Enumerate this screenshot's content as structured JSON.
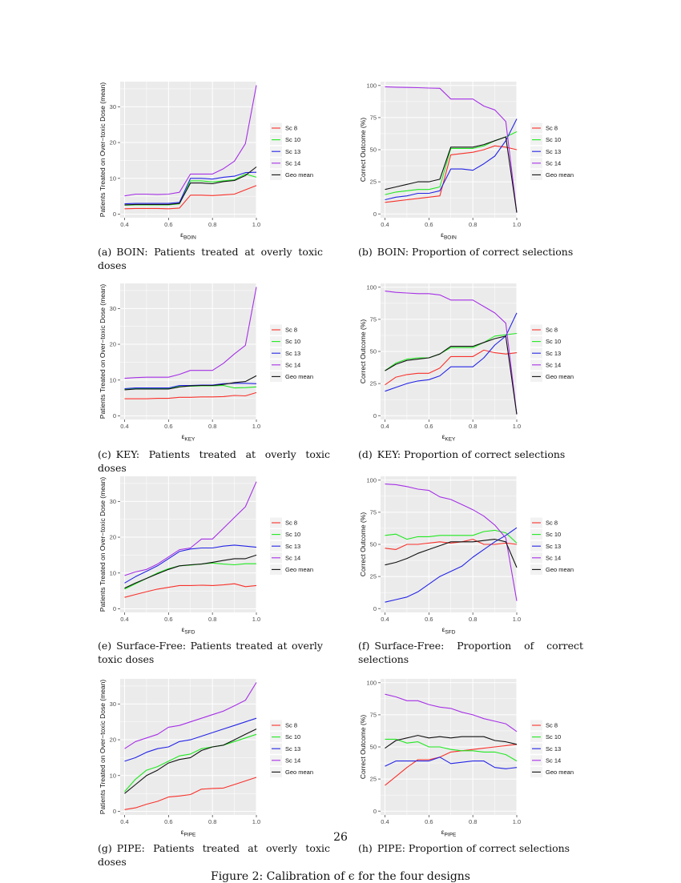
{
  "page_number": "26",
  "figure_caption": "Figure 2: Calibration of ϵ for the four designs",
  "legend_labels": [
    "Sc 8",
    "Sc 10",
    "Sc 13",
    "Sc 14",
    "Geo mean"
  ],
  "colors": {
    "Sc 8": "#f8312b",
    "Sc 10": "#21e821",
    "Sc 13": "#2424e6",
    "Sc 14": "#a630e6",
    "Geo mean": "#111111",
    "panel_bg": "#ebebeb",
    "grid": "#ffffff"
  },
  "captions": [
    {
      "label": "(a)",
      "text": "BOIN: Patients treated at overly toxic doses"
    },
    {
      "label": "(b)",
      "text": "BOIN: Proportion of correct selections"
    },
    {
      "label": "(c)",
      "text": "KEY: Patients treated at overly toxic doses"
    },
    {
      "label": "(d)",
      "text": "KEY: Proportion of correct selections"
    },
    {
      "label": "(e)",
      "text": "Surface-Free: Patients treated at overly toxic doses"
    },
    {
      "label": "(f)",
      "text": "Surface-Free: Proportion of correct selections"
    },
    {
      "label": "(g)",
      "text": "PIPE: Patients treated at overly toxic doses"
    },
    {
      "label": "(h)",
      "text": "PIPE: Proportion of correct selections"
    }
  ],
  "chart_data": [
    {
      "type": "line",
      "ylabel": "Patients Treated on Over−toxic Dose (mean)",
      "xlabel_base": "ε",
      "xlabel_sub": "BOIN",
      "xlim": [
        0.38,
        1.0
      ],
      "ylim": [
        -1,
        37
      ],
      "xticks": [
        0.4,
        0.6,
        0.8,
        1.0
      ],
      "xtick_labels": [
        "0.4",
        "0.6",
        "0.8",
        "1.0"
      ],
      "yticks": [
        0,
        10,
        20,
        30
      ],
      "ytick_labels": [
        "0",
        "10",
        "20",
        "30"
      ],
      "x": [
        0.4,
        0.45,
        0.5,
        0.55,
        0.6,
        0.65,
        0.7,
        0.75,
        0.8,
        0.85,
        0.9,
        0.95,
        1.0
      ],
      "series": [
        {
          "name": "Sc 8",
          "values": [
            1.5,
            1.6,
            1.6,
            1.6,
            1.5,
            1.7,
            5.3,
            5.3,
            5.2,
            5.4,
            5.6,
            6.8,
            8.0
          ]
        },
        {
          "name": "Sc 10",
          "values": [
            2.5,
            2.6,
            2.6,
            2.6,
            2.6,
            2.9,
            9.3,
            9.3,
            9.0,
            9.3,
            9.6,
            11.2,
            10.3
          ]
        },
        {
          "name": "Sc 13",
          "values": [
            2.9,
            3.0,
            3.0,
            3.0,
            3.0,
            3.3,
            10.0,
            10.0,
            9.8,
            10.3,
            10.6,
            11.6,
            11.7
          ]
        },
        {
          "name": "Sc 14",
          "values": [
            5.1,
            5.6,
            5.6,
            5.5,
            5.6,
            6.1,
            11.2,
            11.2,
            11.2,
            12.7,
            14.8,
            19.7,
            36.0
          ]
        },
        {
          "name": "Geo mean",
          "values": [
            2.6,
            2.7,
            2.7,
            2.7,
            2.7,
            3.0,
            8.7,
            8.7,
            8.5,
            9.1,
            9.4,
            10.8,
            13.2
          ]
        }
      ]
    },
    {
      "type": "line",
      "ylabel": "Correct Outcome (%)",
      "xlabel_base": "ε",
      "xlabel_sub": "BOIN",
      "xlim": [
        0.38,
        1.0
      ],
      "ylim": [
        -3,
        103
      ],
      "xticks": [
        0.4,
        0.6,
        0.8,
        1.0
      ],
      "xtick_labels": [
        "0.4",
        "0.6",
        "0.8",
        "1.0"
      ],
      "yticks": [
        0,
        25,
        50,
        75,
        100
      ],
      "ytick_labels": [
        "0",
        "25",
        "50",
        "75",
        "100"
      ],
      "x": [
        0.4,
        0.45,
        0.5,
        0.55,
        0.6,
        0.65,
        0.7,
        0.75,
        0.8,
        0.85,
        0.9,
        0.95,
        1.0
      ],
      "series": [
        {
          "name": "Sc 8",
          "values": [
            9,
            10,
            11,
            12,
            13,
            14,
            46,
            47,
            48,
            50,
            53,
            52,
            50
          ]
        },
        {
          "name": "Sc 10",
          "values": [
            15,
            17,
            18,
            19,
            19,
            21,
            51,
            51,
            51,
            53,
            57,
            60,
            64
          ]
        },
        {
          "name": "Sc 13",
          "values": [
            11,
            13,
            14,
            16,
            16,
            18,
            35,
            35,
            34,
            39,
            45,
            57,
            74
          ]
        },
        {
          "name": "Sc 14",
          "values": [
            99,
            98.7,
            98.5,
            98.3,
            98,
            97.8,
            89.5,
            89.5,
            89.5,
            84,
            81,
            72,
            1
          ]
        },
        {
          "name": "Geo mean",
          "values": [
            19,
            21,
            23,
            25,
            25,
            27,
            52,
            52,
            52,
            54,
            57,
            60,
            1
          ]
        }
      ]
    },
    {
      "type": "line",
      "ylabel": "Patients Treated on Over−toxic Dose (mean)",
      "xlabel_base": "ε",
      "xlabel_sub": "KEY",
      "xlim": [
        0.38,
        1.0
      ],
      "ylim": [
        -1,
        37
      ],
      "xticks": [
        0.4,
        0.6,
        0.8,
        1.0
      ],
      "xtick_labels": [
        "0.4",
        "0.6",
        "0.8",
        "1.0"
      ],
      "yticks": [
        0,
        10,
        20,
        30
      ],
      "ytick_labels": [
        "0",
        "10",
        "20",
        "30"
      ],
      "x": [
        0.4,
        0.45,
        0.5,
        0.55,
        0.6,
        0.65,
        0.7,
        0.75,
        0.8,
        0.85,
        0.9,
        0.95,
        1.0
      ],
      "series": [
        {
          "name": "Sc 8",
          "values": [
            4.8,
            4.8,
            4.8,
            4.9,
            4.9,
            5.2,
            5.2,
            5.3,
            5.3,
            5.4,
            5.7,
            5.6,
            6.5
          ]
        },
        {
          "name": "Sc 10",
          "values": [
            7.5,
            7.6,
            7.7,
            7.7,
            7.7,
            8.2,
            8.3,
            8.4,
            8.4,
            8.5,
            7.8,
            7.9,
            8.1
          ]
        },
        {
          "name": "Sc 13",
          "values": [
            7.6,
            7.8,
            7.8,
            7.8,
            7.8,
            8.5,
            8.5,
            8.6,
            8.6,
            9.0,
            9.1,
            9.1,
            9.0
          ]
        },
        {
          "name": "Sc 14",
          "values": [
            10.5,
            10.7,
            10.8,
            10.8,
            10.8,
            11.6,
            12.7,
            12.7,
            12.7,
            14.7,
            17.3,
            19.7,
            36.0
          ]
        },
        {
          "name": "Geo mean",
          "values": [
            7.3,
            7.5,
            7.5,
            7.5,
            7.5,
            8.1,
            8.4,
            8.5,
            8.5,
            8.8,
            9.3,
            9.6,
            11.2
          ]
        }
      ]
    },
    {
      "type": "line",
      "ylabel": "Correct Outcome (%)",
      "xlabel_base": "ε",
      "xlabel_sub": "KEY",
      "xlim": [
        0.38,
        1.0
      ],
      "ylim": [
        -3,
        103
      ],
      "xticks": [
        0.4,
        0.6,
        0.8,
        1.0
      ],
      "xtick_labels": [
        "0.4",
        "0.6",
        "0.8",
        "1.0"
      ],
      "yticks": [
        0,
        25,
        50,
        75,
        100
      ],
      "ytick_labels": [
        "0",
        "25",
        "50",
        "75",
        "100"
      ],
      "x": [
        0.4,
        0.45,
        0.5,
        0.55,
        0.6,
        0.65,
        0.7,
        0.75,
        0.8,
        0.85,
        0.9,
        0.95,
        1.0
      ],
      "series": [
        {
          "name": "Sc 8",
          "values": [
            24,
            30,
            32,
            33,
            33,
            37,
            46,
            46,
            46,
            51,
            49,
            48,
            49
          ]
        },
        {
          "name": "Sc 10",
          "values": [
            35,
            41,
            44,
            45,
            45,
            48,
            53,
            53,
            53,
            57,
            62,
            63,
            64
          ]
        },
        {
          "name": "Sc 13",
          "values": [
            19,
            22,
            25,
            27,
            28,
            31,
            38,
            38,
            38,
            45,
            55,
            62,
            80
          ]
        },
        {
          "name": "Sc 14",
          "values": [
            97,
            96,
            95.5,
            95,
            95,
            94,
            90,
            90,
            90,
            85,
            80,
            72,
            1
          ]
        },
        {
          "name": "Geo mean",
          "values": [
            35,
            40,
            43,
            44,
            45,
            48,
            54,
            54,
            54,
            57,
            60,
            62,
            1
          ]
        }
      ]
    },
    {
      "type": "line",
      "ylabel": "Patients Treated on Over−toxic Dose (mean)",
      "xlabel_base": "ε",
      "xlabel_sub": "SFD",
      "xlim": [
        0.38,
        1.0
      ],
      "ylim": [
        -1,
        37
      ],
      "xticks": [
        0.4,
        0.6,
        0.8,
        1.0
      ],
      "xtick_labels": [
        "0.4",
        "0.6",
        "0.8",
        "1.0"
      ],
      "yticks": [
        0,
        10,
        20,
        30
      ],
      "ytick_labels": [
        "0",
        "10",
        "20",
        "30"
      ],
      "x": [
        0.4,
        0.45,
        0.5,
        0.55,
        0.6,
        0.65,
        0.7,
        0.75,
        0.8,
        0.85,
        0.9,
        0.95,
        1.0
      ],
      "series": [
        {
          "name": "Sc 8",
          "values": [
            3.2,
            4.0,
            4.8,
            5.5,
            6.0,
            6.5,
            6.5,
            6.6,
            6.5,
            6.7,
            7.0,
            6.2,
            6.5
          ]
        },
        {
          "name": "Sc 10",
          "values": [
            5.5,
            7.0,
            8.5,
            10.0,
            11.2,
            12.0,
            12.2,
            12.5,
            12.8,
            12.5,
            12.3,
            12.6,
            12.6
          ]
        },
        {
          "name": "Sc 13",
          "values": [
            7.2,
            9.0,
            10.5,
            12.0,
            14.0,
            16.0,
            16.7,
            17.0,
            17.0,
            17.5,
            17.8,
            17.5,
            17.2
          ]
        },
        {
          "name": "Sc 14",
          "values": [
            9.3,
            10.3,
            11.0,
            12.5,
            14.5,
            16.5,
            17.0,
            19.5,
            19.5,
            22.5,
            25.5,
            28.5,
            35.5
          ]
        },
        {
          "name": "Geo mean",
          "values": [
            5.8,
            7.2,
            8.5,
            9.8,
            11.0,
            12.0,
            12.3,
            12.5,
            13.0,
            13.5,
            14.0,
            14.0,
            15.0
          ]
        }
      ]
    },
    {
      "type": "line",
      "ylabel": "Correct Outcome (%)",
      "xlabel_base": "ε",
      "xlabel_sub": "SFD",
      "xlim": [
        0.38,
        1.0
      ],
      "ylim": [
        -3,
        103
      ],
      "xticks": [
        0.4,
        0.6,
        0.8,
        1.0
      ],
      "xtick_labels": [
        "0.4",
        "0.6",
        "0.8",
        "1.0"
      ],
      "yticks": [
        0,
        25,
        50,
        75,
        100
      ],
      "ytick_labels": [
        "0",
        "25",
        "50",
        "75",
        "100"
      ],
      "x": [
        0.4,
        0.45,
        0.5,
        0.55,
        0.6,
        0.65,
        0.7,
        0.75,
        0.8,
        0.85,
        0.9,
        0.95,
        1.0
      ],
      "series": [
        {
          "name": "Sc 8",
          "values": [
            47,
            46,
            50,
            50,
            51,
            52,
            51,
            52,
            54,
            50,
            50,
            51,
            50
          ]
        },
        {
          "name": "Sc 10",
          "values": [
            57,
            58,
            54,
            56,
            56,
            57,
            57,
            57,
            57,
            60,
            61,
            59,
            51
          ]
        },
        {
          "name": "Sc 13",
          "values": [
            5,
            7,
            9,
            13,
            19,
            25,
            29,
            33,
            40,
            46,
            52,
            57,
            63
          ]
        },
        {
          "name": "Sc 14",
          "values": [
            97,
            96.5,
            95,
            93,
            92,
            87,
            85,
            81,
            77,
            72,
            65,
            55,
            6
          ]
        },
        {
          "name": "Geo mean",
          "values": [
            34,
            36,
            39,
            43,
            46,
            49,
            52,
            52,
            52,
            53,
            54,
            52,
            32
          ]
        }
      ]
    },
    {
      "type": "line",
      "ylabel": "Patients Treated on Over−toxic Dose (mean)",
      "xlabel_base": "ε",
      "xlabel_sub": "PIPE",
      "xlim": [
        0.38,
        1.0
      ],
      "ylim": [
        -1,
        37
      ],
      "xticks": [
        0.4,
        0.6,
        0.8,
        1.0
      ],
      "xtick_labels": [
        "0.4",
        "0.6",
        "0.8",
        "1.0"
      ],
      "yticks": [
        0,
        10,
        20,
        30
      ],
      "ytick_labels": [
        "0",
        "10",
        "20",
        "30"
      ],
      "x": [
        0.4,
        0.45,
        0.5,
        0.55,
        0.6,
        0.65,
        0.7,
        0.75,
        0.8,
        0.85,
        0.9,
        0.95,
        1.0
      ],
      "series": [
        {
          "name": "Sc 8",
          "values": [
            0.5,
            1.0,
            2.0,
            2.8,
            4.0,
            4.3,
            4.7,
            6.2,
            6.4,
            6.5,
            7.5,
            8.5,
            9.5
          ]
        },
        {
          "name": "Sc 10",
          "values": [
            5.5,
            9.0,
            11.5,
            12.5,
            14.0,
            15.5,
            16.0,
            17.5,
            18.0,
            18.5,
            19.5,
            20.5,
            21.5
          ]
        },
        {
          "name": "Sc 13",
          "values": [
            14.0,
            15.0,
            16.5,
            17.5,
            18.0,
            19.5,
            20.0,
            21.0,
            22.0,
            23.0,
            24.0,
            25.0,
            26.0
          ]
        },
        {
          "name": "Sc 14",
          "values": [
            17.5,
            19.5,
            20.5,
            21.5,
            23.5,
            24.0,
            25.0,
            26.0,
            27.0,
            28.0,
            29.5,
            31.0,
            36.0
          ]
        },
        {
          "name": "Geo mean",
          "values": [
            5.0,
            7.5,
            10.0,
            11.5,
            13.5,
            14.5,
            15.0,
            17.0,
            18.0,
            18.5,
            20.0,
            21.5,
            23.0
          ]
        }
      ]
    },
    {
      "type": "line",
      "ylabel": "Correct Outcome (%)",
      "xlabel_base": "ε",
      "xlabel_sub": "PIPE",
      "xlim": [
        0.38,
        1.0
      ],
      "ylim": [
        -3,
        103
      ],
      "xticks": [
        0.4,
        0.6,
        0.8,
        1.0
      ],
      "xtick_labels": [
        "0.4",
        "0.6",
        "0.8",
        "1.0"
      ],
      "yticks": [
        0,
        25,
        50,
        75,
        100
      ],
      "ytick_labels": [
        "0",
        "25",
        "50",
        "75",
        "100"
      ],
      "x": [
        0.4,
        0.45,
        0.5,
        0.55,
        0.6,
        0.65,
        0.7,
        0.75,
        0.8,
        0.85,
        0.9,
        0.95,
        1.0
      ],
      "series": [
        {
          "name": "Sc 8",
          "values": [
            20,
            27,
            34,
            40,
            40,
            42,
            46,
            47,
            48,
            49,
            50,
            51,
            52
          ]
        },
        {
          "name": "Sc 10",
          "values": [
            56,
            56,
            53,
            54,
            50,
            50,
            48,
            47,
            47,
            46,
            46,
            44,
            39
          ]
        },
        {
          "name": "Sc 13",
          "values": [
            35,
            39,
            39,
            39,
            39,
            42,
            37,
            38,
            39,
            39,
            34,
            33,
            34
          ]
        },
        {
          "name": "Sc 14",
          "values": [
            91,
            89,
            86,
            86,
            83,
            81,
            80,
            77,
            75,
            72,
            70,
            68,
            62
          ]
        },
        {
          "name": "Geo mean",
          "values": [
            49,
            55,
            57,
            59,
            57,
            58,
            57,
            58,
            58,
            58,
            55,
            54,
            52
          ]
        }
      ]
    }
  ]
}
